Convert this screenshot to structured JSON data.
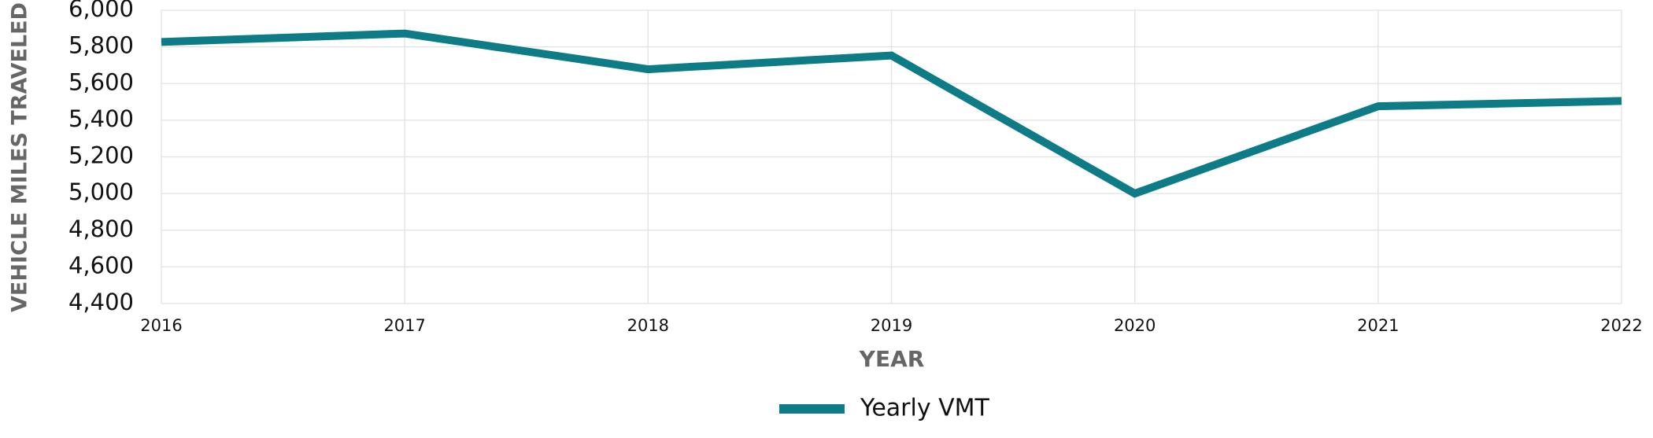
{
  "chart_data": {
    "type": "line",
    "categories": [
      "2016",
      "2017",
      "2018",
      "2019",
      "2020",
      "2021",
      "2022"
    ],
    "series": [
      {
        "name": "Yearly VMT",
        "color": "#0e7c86",
        "values": [
          5827,
          5873,
          5678,
          5753,
          5000,
          5476,
          5505
        ]
      }
    ],
    "x_label": "YEAR",
    "y_label": "VEHICLE MILES TRAVELED",
    "ylim": [
      4400,
      6000
    ],
    "yticks": [
      {
        "value": 4400,
        "label": "4,400"
      },
      {
        "value": 4600,
        "label": "4,600"
      },
      {
        "value": 4800,
        "label": "4,800"
      },
      {
        "value": 5000,
        "label": "5,000"
      },
      {
        "value": 5200,
        "label": "5,200"
      },
      {
        "value": 5400,
        "label": "5,400"
      },
      {
        "value": 5600,
        "label": "5,600"
      },
      {
        "value": 5800,
        "label": "5,800"
      },
      {
        "value": 6000,
        "label": "6,000"
      }
    ],
    "grid": true,
    "legend": "bottom"
  }
}
